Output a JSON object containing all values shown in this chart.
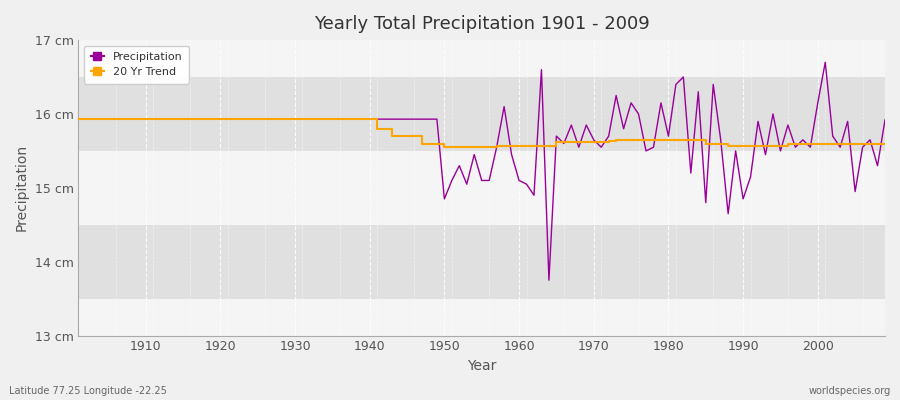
{
  "title": "Yearly Total Precipitation 1901 - 2009",
  "xlabel": "Year",
  "ylabel": "Precipitation",
  "footnote_left": "Latitude 77.25 Longitude -22.25",
  "footnote_right": "worldspecies.org",
  "bg_color": "#f0f0f0",
  "plot_bg_color": "#ebebeb",
  "band_color_light": "#f5f5f5",
  "band_color_dark": "#e0e0e0",
  "precip_color": "#990099",
  "trend_color": "#ffa500",
  "ylim": [
    13,
    17
  ],
  "ytick_labels": [
    "13 cm",
    "14 cm",
    "15 cm",
    "16 cm",
    "17 cm"
  ],
  "ytick_vals": [
    13,
    14,
    15,
    16,
    17
  ],
  "xtick_vals": [
    1910,
    1920,
    1930,
    1940,
    1950,
    1960,
    1970,
    1980,
    1990,
    2000
  ],
  "years": [
    1901,
    1902,
    1903,
    1904,
    1905,
    1906,
    1907,
    1908,
    1909,
    1910,
    1911,
    1912,
    1913,
    1914,
    1915,
    1916,
    1917,
    1918,
    1919,
    1920,
    1921,
    1922,
    1923,
    1924,
    1925,
    1926,
    1927,
    1928,
    1929,
    1930,
    1931,
    1932,
    1933,
    1934,
    1935,
    1936,
    1937,
    1938,
    1939,
    1940,
    1941,
    1942,
    1943,
    1944,
    1945,
    1946,
    1947,
    1948,
    1949,
    1950,
    1951,
    1952,
    1953,
    1954,
    1955,
    1956,
    1957,
    1958,
    1959,
    1960,
    1961,
    1962,
    1963,
    1964,
    1965,
    1966,
    1967,
    1968,
    1969,
    1970,
    1971,
    1972,
    1973,
    1974,
    1975,
    1976,
    1977,
    1978,
    1979,
    1980,
    1981,
    1982,
    1983,
    1984,
    1985,
    1986,
    1987,
    1988,
    1989,
    1990,
    1991,
    1992,
    1993,
    1994,
    1995,
    1996,
    1997,
    1998,
    1999,
    2000,
    2001,
    2002,
    2003,
    2004,
    2005,
    2006,
    2007,
    2008,
    2009
  ],
  "precip": [
    15.93,
    15.93,
    15.93,
    15.93,
    15.93,
    15.93,
    15.93,
    15.93,
    15.93,
    15.93,
    15.93,
    15.93,
    15.93,
    15.93,
    15.93,
    15.93,
    15.93,
    15.93,
    15.93,
    15.93,
    15.93,
    15.93,
    15.93,
    15.93,
    15.93,
    15.93,
    15.93,
    15.93,
    15.93,
    15.93,
    15.93,
    15.93,
    15.93,
    15.93,
    15.93,
    15.93,
    15.93,
    15.93,
    15.93,
    15.93,
    15.93,
    15.93,
    15.93,
    15.93,
    15.93,
    15.93,
    15.93,
    15.93,
    15.93,
    14.85,
    15.1,
    15.3,
    15.05,
    15.45,
    15.1,
    15.1,
    15.55,
    16.1,
    15.45,
    15.1,
    15.05,
    14.9,
    16.6,
    13.75,
    15.7,
    15.6,
    15.85,
    15.55,
    15.85,
    15.65,
    15.55,
    15.7,
    16.25,
    15.8,
    16.15,
    16.0,
    15.5,
    15.55,
    16.15,
    15.7,
    16.4,
    16.5,
    15.2,
    16.3,
    14.8,
    16.4,
    15.65,
    14.65,
    15.5,
    14.85,
    15.15,
    15.9,
    15.45,
    16.0,
    15.5,
    15.85,
    15.55,
    15.65,
    15.55,
    16.15,
    16.7,
    15.7,
    15.55,
    15.9,
    14.95,
    15.55,
    15.65,
    15.3,
    15.92
  ],
  "trend": [
    15.93,
    15.93,
    15.93,
    15.93,
    15.93,
    15.93,
    15.93,
    15.93,
    15.93,
    15.93,
    15.93,
    15.93,
    15.93,
    15.93,
    15.93,
    15.93,
    15.93,
    15.93,
    15.93,
    15.93,
    15.93,
    15.93,
    15.93,
    15.93,
    15.93,
    15.93,
    15.93,
    15.93,
    15.93,
    15.93,
    15.93,
    15.93,
    15.93,
    15.93,
    15.93,
    15.93,
    15.93,
    15.93,
    15.93,
    15.93,
    15.8,
    15.8,
    15.7,
    15.7,
    15.7,
    15.7,
    15.6,
    15.6,
    15.6,
    15.55,
    15.55,
    15.55,
    15.55,
    15.55,
    15.55,
    15.55,
    15.57,
    15.57,
    15.57,
    15.57,
    15.57,
    15.57,
    15.57,
    15.57,
    15.62,
    15.62,
    15.62,
    15.62,
    15.62,
    15.62,
    15.62,
    15.63,
    15.65,
    15.65,
    15.65,
    15.65,
    15.65,
    15.65,
    15.65,
    15.65,
    15.65,
    15.65,
    15.65,
    15.65,
    15.6,
    15.6,
    15.6,
    15.57,
    15.57,
    15.57,
    15.57,
    15.57,
    15.57,
    15.57,
    15.57,
    15.6,
    15.6,
    15.6,
    15.6,
    15.6,
    15.6,
    15.6,
    15.6,
    15.6,
    15.6,
    15.6,
    15.6,
    15.6,
    15.6
  ]
}
